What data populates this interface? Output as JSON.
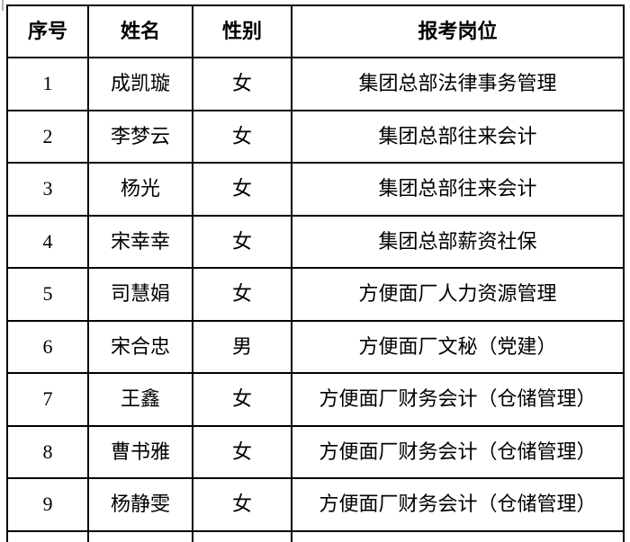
{
  "page": {
    "background": "#ffffff"
  },
  "colors": {
    "border": "#000000",
    "text": "#000000",
    "artifact": "#b3b3b3"
  },
  "table": {
    "columns": [
      "序号",
      "姓名",
      "性别",
      "报考岗位"
    ],
    "rows": [
      {
        "no": "1",
        "name": "成凯璇",
        "gender": "女",
        "position": "集团总部法律事务管理"
      },
      {
        "no": "2",
        "name": "李梦云",
        "gender": "女",
        "position": "集团总部往来会计"
      },
      {
        "no": "3",
        "name": "杨光",
        "gender": "女",
        "position": "集团总部往来会计"
      },
      {
        "no": "4",
        "name": "宋幸幸",
        "gender": "女",
        "position": "集团总部薪资社保"
      },
      {
        "no": "5",
        "name": "司慧娟",
        "gender": "女",
        "position": "方便面厂人力资源管理"
      },
      {
        "no": "6",
        "name": "宋合忠",
        "gender": "男",
        "position": "方便面厂文秘（党建）"
      },
      {
        "no": "7",
        "name": "王鑫",
        "gender": "女",
        "position": "方便面厂财务会计（仓储管理）"
      },
      {
        "no": "8",
        "name": "曹书雅",
        "gender": "女",
        "position": "方便面厂财务会计（仓储管理）"
      },
      {
        "no": "9",
        "name": "杨静雯",
        "gender": "女",
        "position": "方便面厂财务会计（仓储管理）"
      }
    ]
  }
}
